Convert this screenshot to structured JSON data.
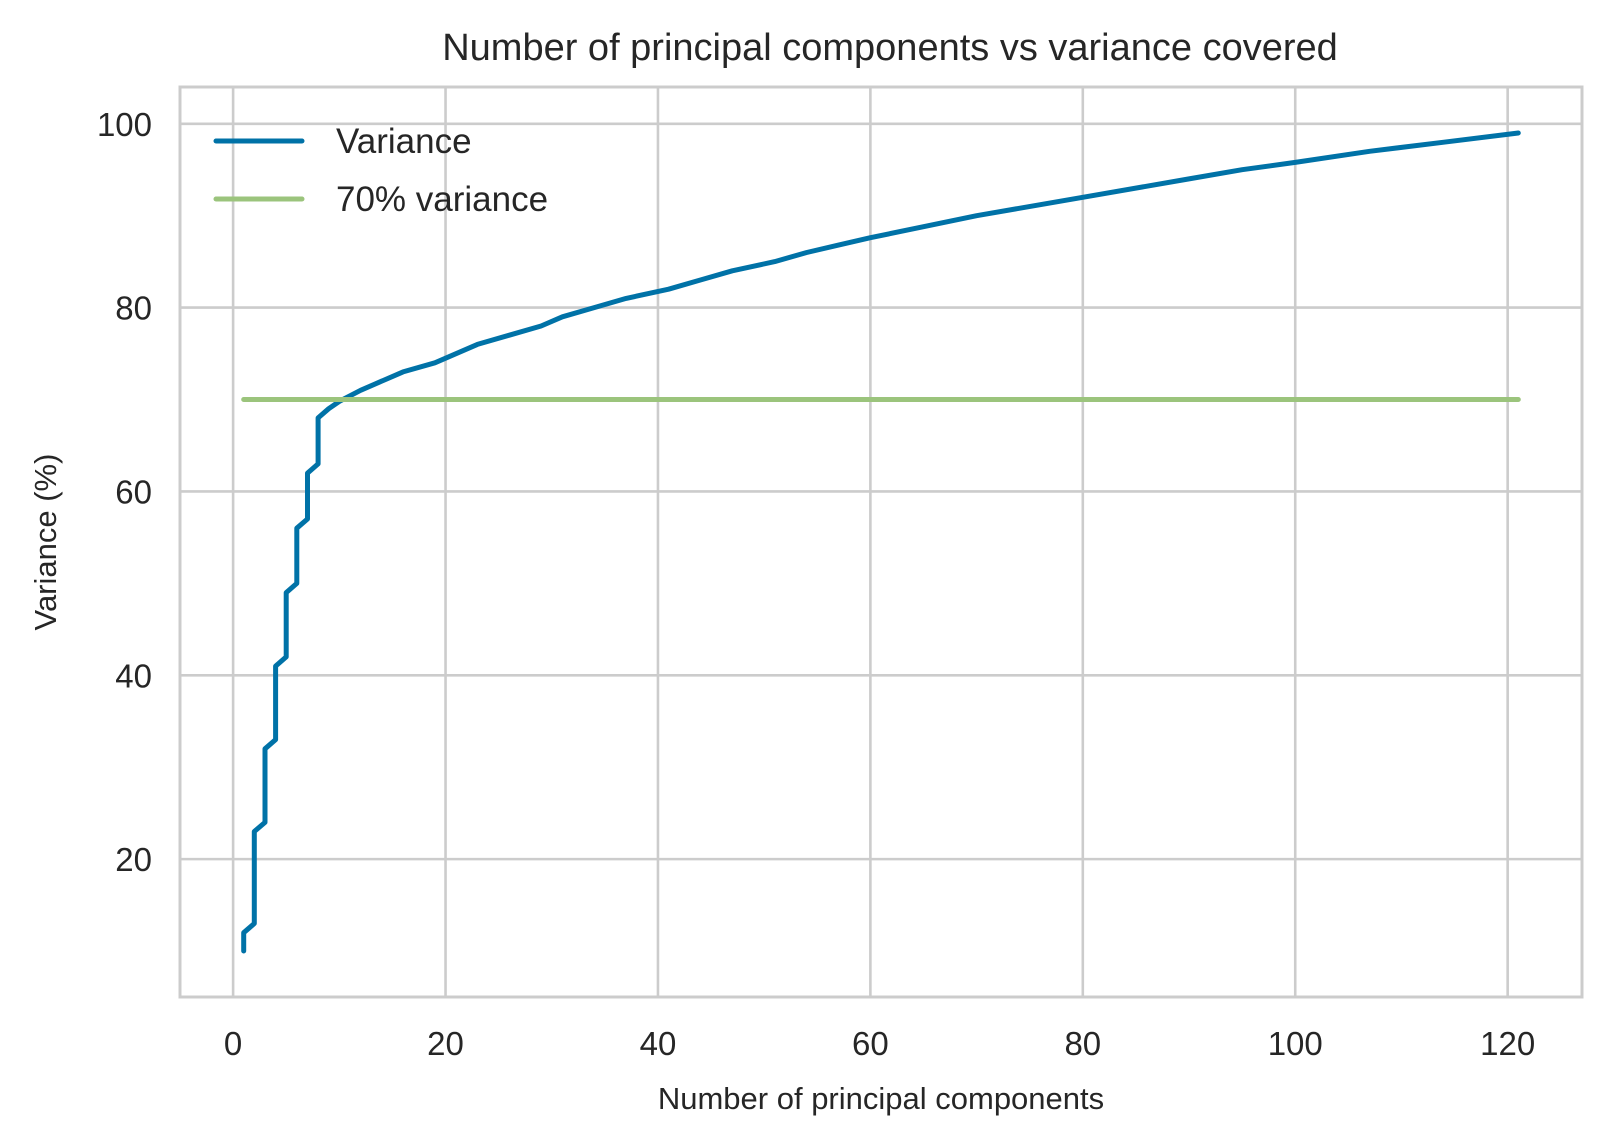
{
  "chart_data": {
    "type": "line",
    "title": "Number of principal components vs variance covered",
    "xlabel": "Number of principal components",
    "ylabel": "Variance (%)",
    "xlim": [
      -5,
      127
    ],
    "ylim": [
      5,
      104
    ],
    "xticks": [
      0,
      20,
      40,
      60,
      80,
      100,
      120
    ],
    "yticks": [
      20,
      40,
      60,
      80,
      100
    ],
    "grid": true,
    "legend_position": "top-left",
    "series": [
      {
        "name": "Variance",
        "color": "#0072a7",
        "x": [
          1,
          1,
          2,
          2,
          3,
          3,
          4,
          4,
          5,
          5,
          6,
          6,
          7,
          7,
          8,
          8,
          9,
          10,
          12,
          14,
          16,
          19,
          23,
          26,
          29,
          31,
          34,
          37,
          41,
          44,
          47,
          51,
          54,
          57,
          60,
          65,
          70,
          80,
          90,
          95,
          100,
          107,
          114,
          121
        ],
        "y": [
          10,
          12,
          13,
          23,
          24,
          32,
          33,
          41,
          42,
          49,
          50,
          56,
          57,
          62,
          63,
          68,
          69,
          69.8,
          71,
          72,
          73,
          74,
          76,
          77,
          78,
          79,
          80,
          81,
          82,
          83,
          84,
          85,
          86,
          86.8,
          87.6,
          88.8,
          90,
          92,
          94,
          95,
          95.8,
          97,
          98,
          99
        ]
      },
      {
        "name": "70% variance",
        "color": "#9bc47c",
        "x": [
          1,
          121
        ],
        "y": [
          70,
          70
        ]
      }
    ]
  }
}
